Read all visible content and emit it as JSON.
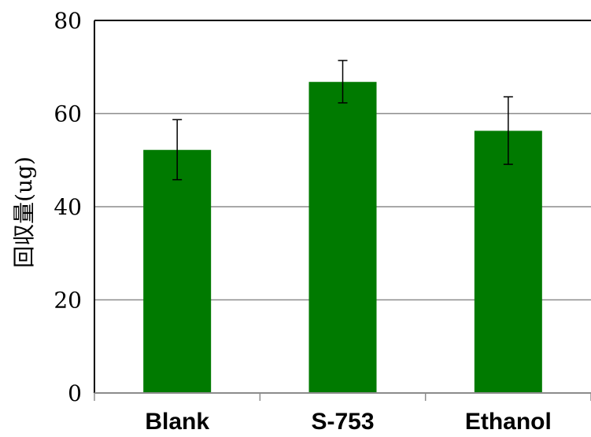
{
  "chart_data": {
    "type": "bar",
    "title": "",
    "xlabel": "",
    "ylabel": "回収量(ug)",
    "categories": [
      "Blank",
      "S-753",
      "Ethanol"
    ],
    "values": [
      52.2,
      66.8,
      56.3
    ],
    "error_low": [
      45.8,
      62.3,
      49.1
    ],
    "error_high": [
      58.7,
      71.4,
      63.6
    ],
    "ylim": [
      0,
      80
    ],
    "yticks": [
      0,
      20,
      40,
      60,
      80
    ],
    "grid": true,
    "legend": "none",
    "bar_color": "#007A00",
    "grid_color": "#8C8C8C"
  }
}
